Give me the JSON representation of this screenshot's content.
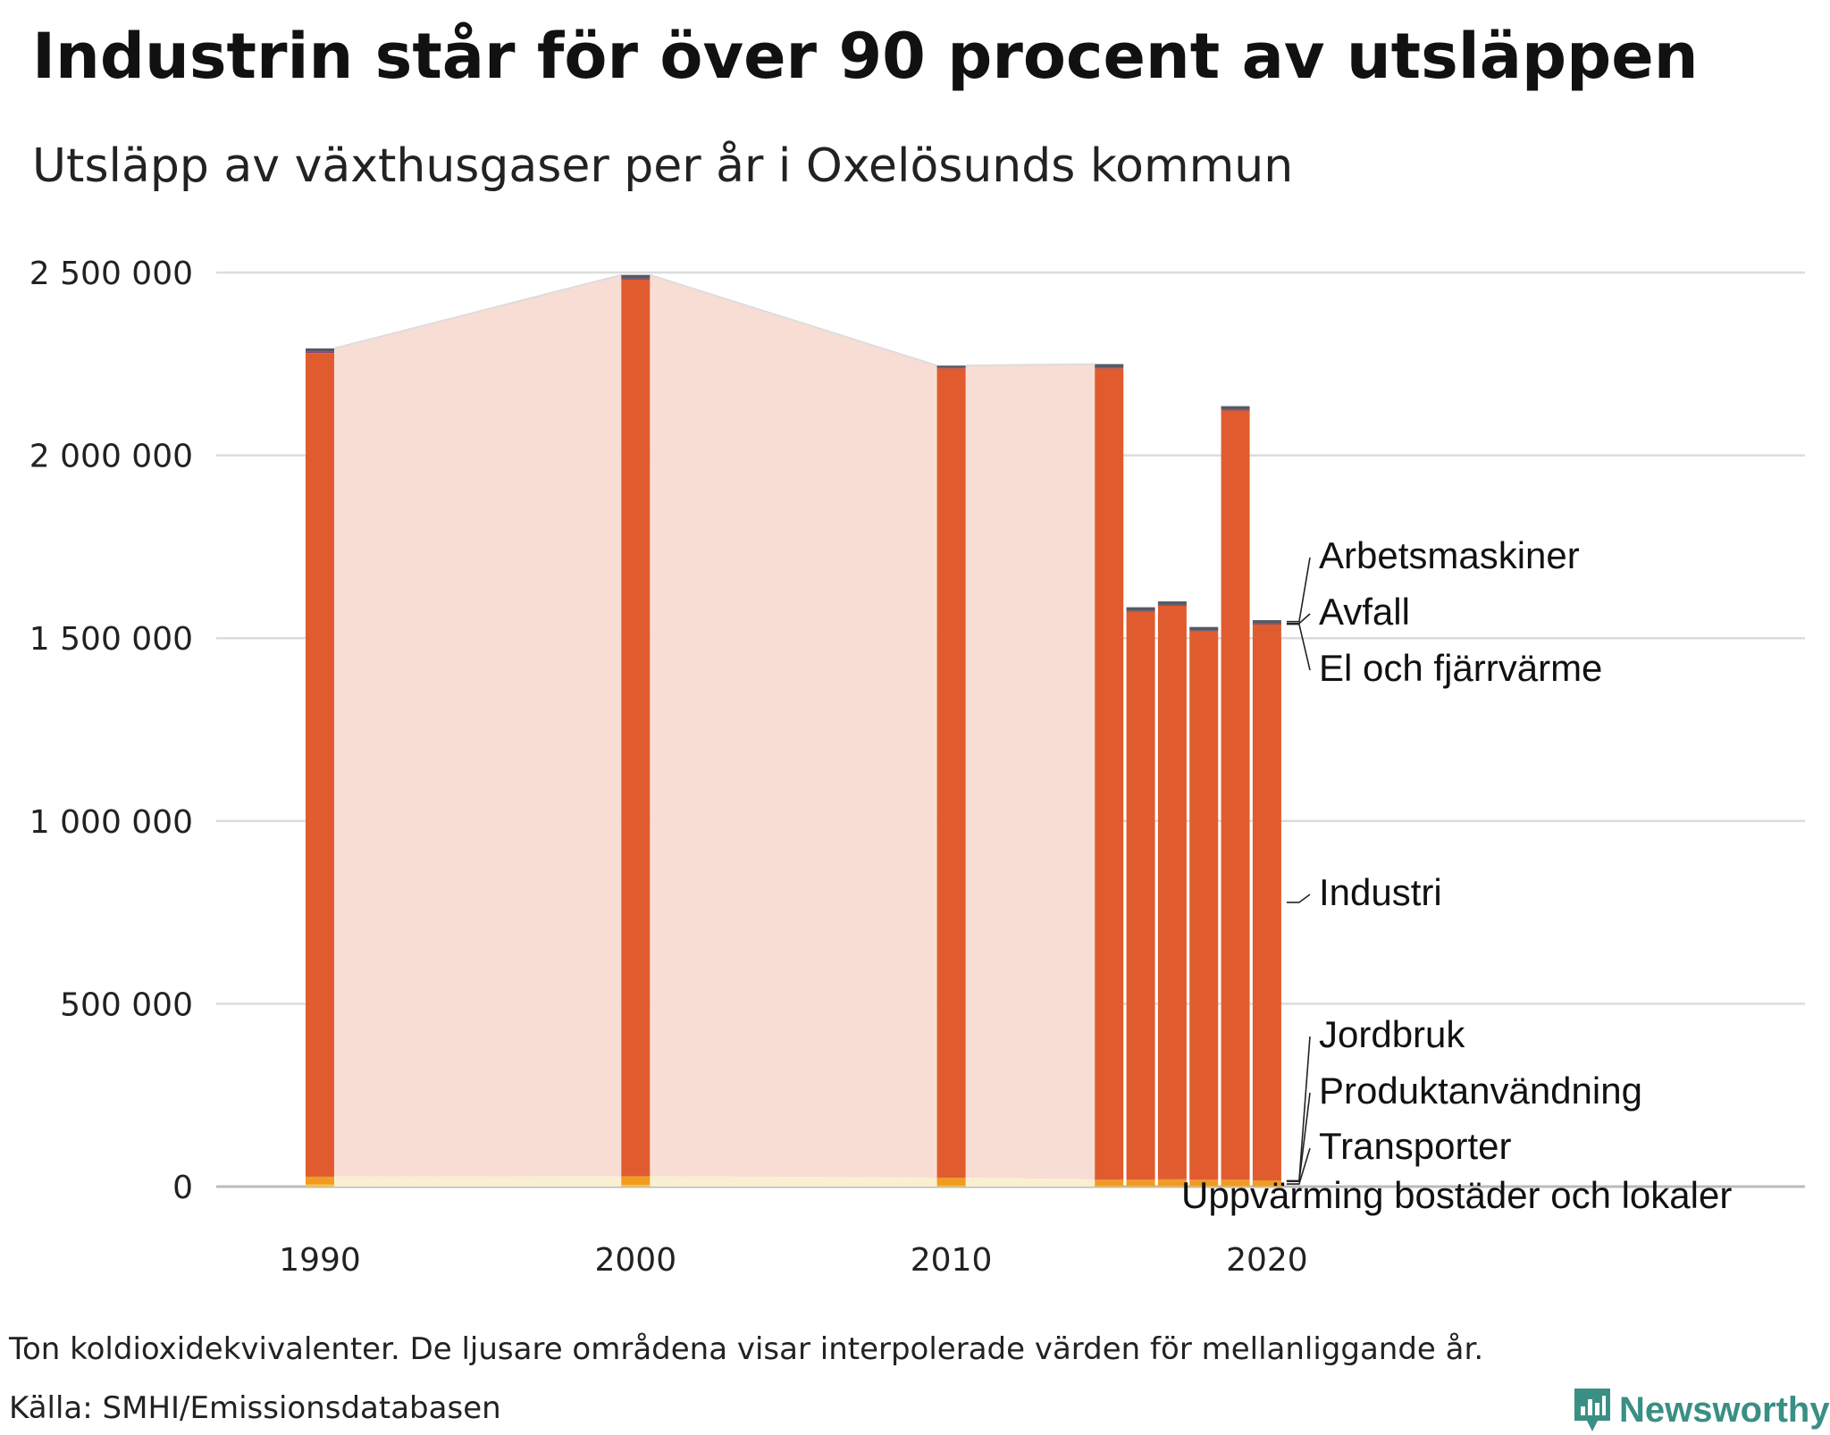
{
  "title": "Industrin står för över 90 procent av utsläppen",
  "subtitle": "Utsläpp av växthusgaser per år i Oxelösunds kommun",
  "footnote": "Ton koldioxidekvivalenter. De ljusare områdena visar interpolerade värden för mellanliggande år.",
  "source": "Källa: SMHI/Emissionsdatabasen",
  "logo": {
    "text": "Newsworthy"
  },
  "colors": {
    "industri": "#e05c2f",
    "industri_interp": "#f8ddd4",
    "interp_edge": "#dddddd",
    "orange_small": "#f29b1c",
    "yellow_small": "#f3c74a",
    "small_interp": "#fbefd2",
    "dark_top": "#555963",
    "grid": "#dcdcdc",
    "axis": "#bbbbbb",
    "logo": "#3a8f84"
  },
  "chart_data": {
    "type": "bar",
    "stacked": true,
    "title": "Industrin står för över 90 procent av utsläppen",
    "subtitle": "Utsläpp av växthusgaser per år i Oxelösunds kommun",
    "xlabel": "",
    "ylabel": "",
    "unit": "Ton koldioxidekvivalenter",
    "ylim": [
      0,
      2500000
    ],
    "yticks": [
      0,
      500000,
      1000000,
      1500000,
      2000000,
      2500000
    ],
    "ytick_labels": [
      "0",
      "500 000",
      "1 000 000",
      "1 500 000",
      "2 000 000",
      "2 500 000"
    ],
    "xticks": [
      1990,
      2000,
      2010,
      2020
    ],
    "xtick_labels": [
      "1990",
      "2000",
      "2010",
      "2020"
    ],
    "x": [
      1990,
      2000,
      2010,
      2015,
      2016,
      2017,
      2018,
      2019,
      2020
    ],
    "interpolated_between": [
      [
        1990,
        2000
      ],
      [
        2000,
        2010
      ],
      [
        2010,
        2015
      ]
    ],
    "series": [
      {
        "name": "Uppvärming bostäder och lokaler",
        "color": "#f3c74a",
        "values": [
          6000,
          5000,
          3000,
          1500,
          1500,
          1500,
          1500,
          1500,
          1200
        ]
      },
      {
        "name": "Transporter",
        "color": "#f29b1c",
        "values": [
          18000,
          20000,
          18000,
          14000,
          14000,
          15000,
          14000,
          14000,
          12000
        ]
      },
      {
        "name": "Produktanvändning",
        "color": "#f07c2a",
        "values": [
          1500,
          1500,
          1500,
          2000,
          2000,
          2000,
          2000,
          2000,
          2000
        ]
      },
      {
        "name": "Jordbruk",
        "color": "#e8a04a",
        "values": [
          2000,
          2000,
          2000,
          2000,
          2000,
          2000,
          2000,
          2000,
          2000
        ]
      },
      {
        "name": "Industri",
        "color": "#e05c2f",
        "values": [
          2252000,
          2452000,
          2213000,
          2218000,
          1553000,
          1568000,
          1499000,
          2103000,
          1520000
        ]
      },
      {
        "name": "El och fjärrvärme",
        "color": "#8a4a6a",
        "values": [
          3000,
          3000,
          2000,
          2000,
          2000,
          2000,
          2000,
          2000,
          2000
        ]
      },
      {
        "name": "Avfall",
        "color": "#6e6e7a",
        "values": [
          2000,
          2000,
          2000,
          2000,
          2000,
          2000,
          2000,
          2000,
          2000
        ]
      },
      {
        "name": "Arbetsmaskiner",
        "color": "#555963",
        "values": [
          8000,
          8000,
          4000,
          8000,
          8000,
          8000,
          8000,
          8000,
          8000
        ]
      }
    ],
    "labels": [
      {
        "text": "Arbetsmaskiner",
        "series": "Arbetsmaskiner"
      },
      {
        "text": "Avfall",
        "series": "Avfall"
      },
      {
        "text": "El och fjärrvärme",
        "series": "El och fjärrvärme"
      },
      {
        "text": "Industri",
        "series": "Industri"
      },
      {
        "text": "Jordbruk",
        "series": "Jordbruk"
      },
      {
        "text": "Produktanvändning",
        "series": "Produktanvändning"
      },
      {
        "text": "Transporter",
        "series": "Transporter"
      },
      {
        "text": "Uppvärming bostäder och lokaler",
        "series": "Uppvärming bostäder och lokaler"
      }
    ]
  }
}
